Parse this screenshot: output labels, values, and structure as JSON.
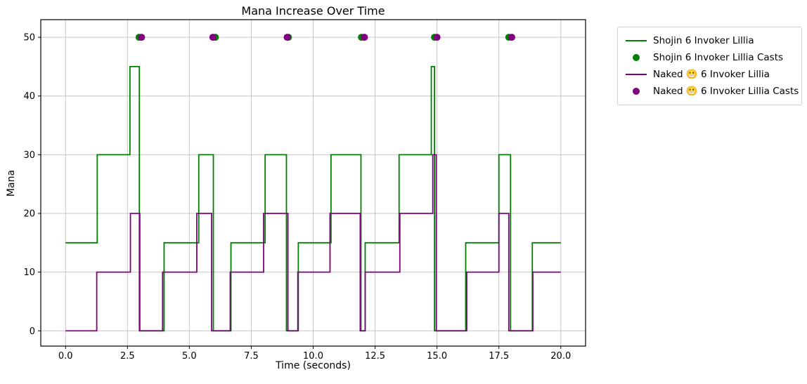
{
  "figure": {
    "background": "#ffffff"
  },
  "chart_data": {
    "type": "step",
    "title": "Mana Increase Over Time",
    "xlabel": "Time (seconds)",
    "ylabel": "Mana",
    "xlim": [
      -1,
      21
    ],
    "ylim": [
      -2.6,
      53
    ],
    "xticks": [
      0,
      2.5,
      5,
      7.5,
      10,
      12.5,
      15,
      17.5,
      20
    ],
    "xtick_labels": [
      "0.0",
      "2.5",
      "5.0",
      "7.5",
      "10.0",
      "12.5",
      "15.0",
      "17.5",
      "20.0"
    ],
    "yticks": [
      0,
      10,
      20,
      30,
      40,
      50
    ],
    "ytick_labels": [
      "0",
      "10",
      "20",
      "30",
      "40",
      "50"
    ],
    "grid": true,
    "grid_color": "#c6c6c6",
    "axes_color": "#000000",
    "series": [
      {
        "name": "Shojin 6 Invoker Lillia",
        "color": "#008000",
        "step": "post",
        "points": [
          [
            0,
            15
          ],
          [
            1.28,
            30
          ],
          [
            2.6,
            45
          ],
          [
            2.98,
            0
          ],
          [
            3.98,
            15
          ],
          [
            5.38,
            30
          ],
          [
            5.97,
            0
          ],
          [
            6.68,
            15
          ],
          [
            8.06,
            30
          ],
          [
            8.92,
            0
          ],
          [
            9.4,
            15
          ],
          [
            10.72,
            30
          ],
          [
            11.93,
            0
          ],
          [
            12.1,
            15
          ],
          [
            13.47,
            30
          ],
          [
            14.77,
            45
          ],
          [
            14.9,
            0
          ],
          [
            16.16,
            15
          ],
          [
            17.5,
            30
          ],
          [
            17.97,
            0
          ],
          [
            18.85,
            15
          ],
          [
            20,
            15
          ]
        ]
      },
      {
        "name": "Naked 😬 6 Invoker Lillia",
        "color": "#800080",
        "step": "post",
        "points": [
          [
            0,
            0
          ],
          [
            1.26,
            10
          ],
          [
            2.62,
            20
          ],
          [
            3.0,
            0
          ],
          [
            3.92,
            10
          ],
          [
            5.3,
            20
          ],
          [
            5.9,
            0
          ],
          [
            6.65,
            10
          ],
          [
            8.0,
            20
          ],
          [
            8.98,
            0
          ],
          [
            9.38,
            10
          ],
          [
            10.68,
            20
          ],
          [
            11.9,
            0
          ],
          [
            12.1,
            10
          ],
          [
            13.5,
            20
          ],
          [
            14.83,
            30
          ],
          [
            14.97,
            0
          ],
          [
            16.2,
            10
          ],
          [
            17.5,
            20
          ],
          [
            17.9,
            0
          ],
          [
            18.87,
            10
          ],
          [
            20,
            10
          ]
        ]
      }
    ],
    "scatter": [
      {
        "name": "Shojin 6 Invoker Lillia Casts",
        "color": "#008000",
        "y": 50,
        "x": [
          2.97,
          6.05,
          9.0,
          11.95,
          14.9,
          17.9
        ]
      },
      {
        "name": "Naked 😬 6 Invoker Lillia Casts",
        "color": "#800080",
        "y": 50,
        "x": [
          3.07,
          5.95,
          8.95,
          12.07,
          15.0,
          18.02
        ]
      }
    ],
    "legend": {
      "position": "outside-right-top",
      "entries": [
        {
          "swatch": "line",
          "color": "#008000",
          "label": "Shojin 6 Invoker Lillia"
        },
        {
          "swatch": "dot",
          "color": "#008000",
          "label": "Shojin 6 Invoker Lillia Casts"
        },
        {
          "swatch": "line",
          "color": "#800080",
          "label": "Naked 😬 6 Invoker Lillia"
        },
        {
          "swatch": "dot",
          "color": "#800080",
          "label": "Naked 😬 6 Invoker Lillia Casts"
        }
      ]
    }
  }
}
